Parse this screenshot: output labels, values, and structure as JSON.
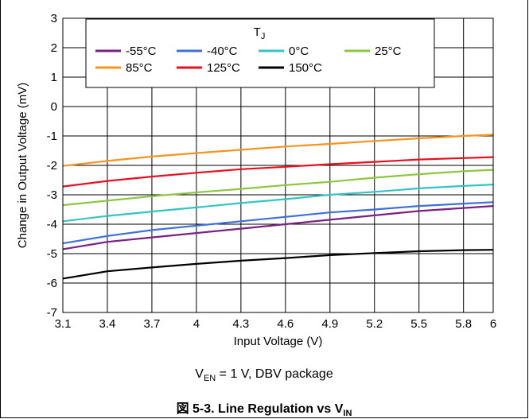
{
  "chart_data": {
    "type": "line",
    "xlabel": "Input Voltage (V)",
    "ylabel": "Change in Output Voltage (mV)",
    "xlim": [
      3.1,
      6
    ],
    "ylim": [
      -7,
      3
    ],
    "xticks": [
      "3.1",
      "3.4",
      "3.7",
      "4",
      "4.3",
      "4.6",
      "4.9",
      "5.2",
      "5.5",
      "5.8",
      "6"
    ],
    "yticks": [
      "3",
      "2",
      "1",
      "0",
      "-1",
      "-2",
      "-3",
      "-4",
      "-5",
      "-6",
      "-7"
    ],
    "grid": true,
    "legend": {
      "title_main": "T",
      "title_sub": "J",
      "placement": "top-right",
      "columns": 4
    },
    "x": [
      3.1,
      3.4,
      3.7,
      4.0,
      4.3,
      4.6,
      4.9,
      5.2,
      5.5,
      5.8,
      6.0
    ],
    "series": [
      {
        "name": "-55°C",
        "color": "#7b2183",
        "values": [
          -4.85,
          -4.6,
          -4.45,
          -4.3,
          -4.15,
          -4.0,
          -3.85,
          -3.7,
          -3.55,
          -3.45,
          -3.38
        ]
      },
      {
        "name": "-40°C",
        "color": "#3f6fd8",
        "values": [
          -4.65,
          -4.4,
          -4.2,
          -4.05,
          -3.9,
          -3.75,
          -3.6,
          -3.5,
          -3.38,
          -3.3,
          -3.25
        ]
      },
      {
        "name": "0°C",
        "color": "#33c4c4",
        "values": [
          -3.9,
          -3.72,
          -3.57,
          -3.43,
          -3.28,
          -3.15,
          -3.0,
          -2.9,
          -2.78,
          -2.7,
          -2.65
        ]
      },
      {
        "name": "25°C",
        "color": "#8dc63f",
        "values": [
          -3.35,
          -3.2,
          -3.05,
          -2.92,
          -2.8,
          -2.67,
          -2.56,
          -2.42,
          -2.3,
          -2.2,
          -2.15
        ]
      },
      {
        "name": "85°C",
        "color": "#f7941d",
        "values": [
          -2.02,
          -1.85,
          -1.7,
          -1.58,
          -1.47,
          -1.36,
          -1.27,
          -1.17,
          -1.08,
          -1.0,
          -0.96
        ]
      },
      {
        "name": "125°C",
        "color": "#e8101e",
        "values": [
          -2.72,
          -2.53,
          -2.38,
          -2.25,
          -2.13,
          -2.05,
          -1.96,
          -1.88,
          -1.8,
          -1.75,
          -1.72
        ]
      },
      {
        "name": "150°C",
        "color": "#000000",
        "values": [
          -5.85,
          -5.6,
          -5.47,
          -5.35,
          -5.24,
          -5.15,
          -5.05,
          -4.98,
          -4.92,
          -4.88,
          -4.87
        ]
      }
    ]
  },
  "caption": {
    "prefix": "V",
    "sub": "EN",
    "rest": " = 1 V, DBV package"
  },
  "figure_title": {
    "text": "図 5-3. Line Regulation vs V",
    "sub": "IN"
  }
}
